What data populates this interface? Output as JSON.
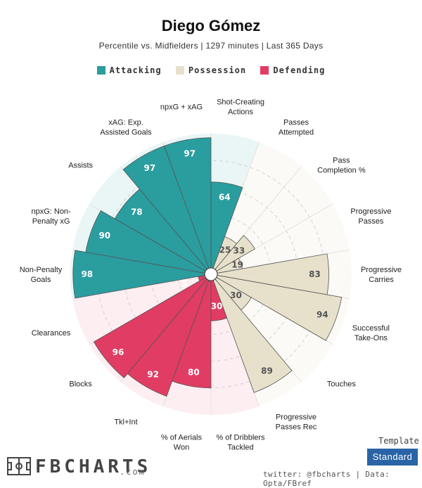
{
  "header": {
    "title": "Diego Gómez",
    "subtitle": "Percentile vs. Midfielders | 1297 minutes | Last 365 Days"
  },
  "legend": [
    {
      "label": "Attacking",
      "color": "#2a9d9f"
    },
    {
      "label": "Possession",
      "color": "#e7e1cc"
    },
    {
      "label": "Defending",
      "color": "#e03c64"
    }
  ],
  "colors": {
    "Attacking": "#2a9d9f",
    "Possession": "#e7e1cc",
    "Defending": "#e03c64",
    "Attacking_bg": "#e9f6f5",
    "Possession_bg": "#fbfaf6",
    "Defending_bg": "#fdeef2"
  },
  "chart_data": {
    "type": "radar-bar",
    "title": "Diego Gómez",
    "subtitle": "Percentile vs. Midfielders | 1297 minutes | Last 365 Days",
    "ylim": [
      0,
      100
    ],
    "categories": [
      {
        "label": [
          "Shot-Creating",
          "Actions"
        ],
        "value": 64,
        "group": "Attacking"
      },
      {
        "label": [
          "Passes",
          "Attempted"
        ],
        "value": 25,
        "group": "Possession"
      },
      {
        "label": [
          "Pass",
          "Completion %"
        ],
        "value": 33,
        "group": "Possession"
      },
      {
        "label": [
          "Progressive",
          "Passes"
        ],
        "value": 19,
        "group": "Possession"
      },
      {
        "label": [
          "Progressive",
          "Carries"
        ],
        "value": 83,
        "group": "Possession"
      },
      {
        "label": [
          "Successful",
          "Take-Ons"
        ],
        "value": 94,
        "group": "Possession"
      },
      {
        "label": [
          "Touches"
        ],
        "value": 30,
        "group": "Possession"
      },
      {
        "label": [
          "Progressive",
          "Passes Rec"
        ],
        "value": 89,
        "group": "Possession"
      },
      {
        "label": [
          "% of Dribblers",
          "Tackled"
        ],
        "value": 30,
        "group": "Defending"
      },
      {
        "label": [
          "% of Aerials",
          "Won"
        ],
        "value": 80,
        "group": "Defending"
      },
      {
        "label": [
          "Tkl+Int"
        ],
        "value": 92,
        "group": "Defending"
      },
      {
        "label": [
          "Blocks"
        ],
        "value": 96,
        "group": "Defending"
      },
      {
        "label": [
          "Clearances"
        ],
        "value": 5,
        "group": "Defending"
      },
      {
        "label": [
          "Non-Penalty",
          "Goals"
        ],
        "value": 98,
        "group": "Attacking"
      },
      {
        "label": [
          "npxG: Non-",
          "Penalty xG"
        ],
        "value": 90,
        "group": "Attacking"
      },
      {
        "label": [
          "Assists"
        ],
        "value": 78,
        "group": "Attacking"
      },
      {
        "label": [
          "xAG: Exp.",
          "Assisted Goals"
        ],
        "value": 97,
        "group": "Attacking"
      },
      {
        "label": [
          "npxG + xAG"
        ],
        "value": 97,
        "group": "Attacking"
      }
    ]
  },
  "footer": {
    "template_label": "Template",
    "template_button": "Standard",
    "credit": "twitter: @fbcharts | Data: Opta/FBref",
    "logo_text": "FBCHARTS",
    "logo_suffix": ".com"
  }
}
